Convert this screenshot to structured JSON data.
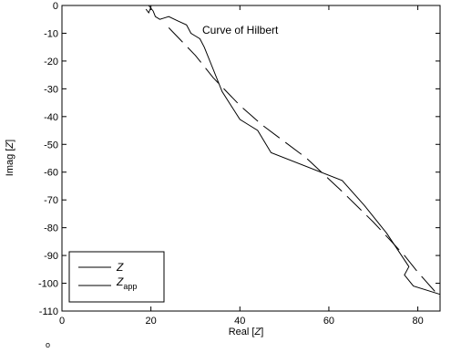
{
  "chart_data": {
    "type": "line",
    "title": "",
    "xlabel_prefix": "Real [",
    "xlabel_var": "Z",
    "xlabel_suffix": "]",
    "ylabel_prefix": "Imag [",
    "ylabel_var": "Z",
    "ylabel_suffix": "]",
    "xlim": [
      0,
      85
    ],
    "ylim": [
      -110,
      0
    ],
    "xticks": [
      0,
      20,
      40,
      60,
      80
    ],
    "yticks": [
      0,
      -10,
      -20,
      -30,
      -40,
      -50,
      -60,
      -70,
      -80,
      -90,
      -100,
      -110
    ],
    "grid": false,
    "legend_position": "bottom-left",
    "annotation": "Curve of Hilbert",
    "series": [
      {
        "name": "Z",
        "legend_var": "Z",
        "legend_sub": "",
        "style": "solid",
        "points": [
          [
            19.5,
            0
          ],
          [
            20,
            -1
          ],
          [
            20.5,
            -2
          ],
          [
            21,
            -4
          ],
          [
            22,
            -5
          ],
          [
            23,
            -4.5
          ],
          [
            24,
            -4
          ],
          [
            26,
            -5.5
          ],
          [
            28,
            -7
          ],
          [
            29,
            -10
          ],
          [
            30,
            -11
          ],
          [
            31,
            -12
          ],
          [
            32,
            -15
          ],
          [
            34,
            -23
          ],
          [
            36,
            -31
          ],
          [
            38,
            -36
          ],
          [
            40,
            -41
          ],
          [
            42,
            -43
          ],
          [
            44,
            -45
          ],
          [
            47,
            -53
          ],
          [
            63,
            -63
          ],
          [
            68,
            -72
          ],
          [
            73,
            -82
          ],
          [
            78,
            -94
          ],
          [
            77,
            -97
          ],
          [
            79,
            -101
          ],
          [
            85,
            -104
          ]
        ]
      },
      {
        "name": "Z_app",
        "legend_var": "Z",
        "legend_sub": "app",
        "style": "dashed",
        "points": [
          [
            24,
            -8
          ],
          [
            30,
            -18
          ],
          [
            34,
            -26
          ],
          [
            40,
            -36
          ],
          [
            45,
            -43
          ],
          [
            55,
            -55
          ],
          [
            63,
            -67
          ],
          [
            70,
            -78
          ],
          [
            77,
            -90
          ],
          [
            80,
            -96
          ],
          [
            85,
            -105
          ]
        ]
      }
    ]
  },
  "stray_glyph": "o"
}
